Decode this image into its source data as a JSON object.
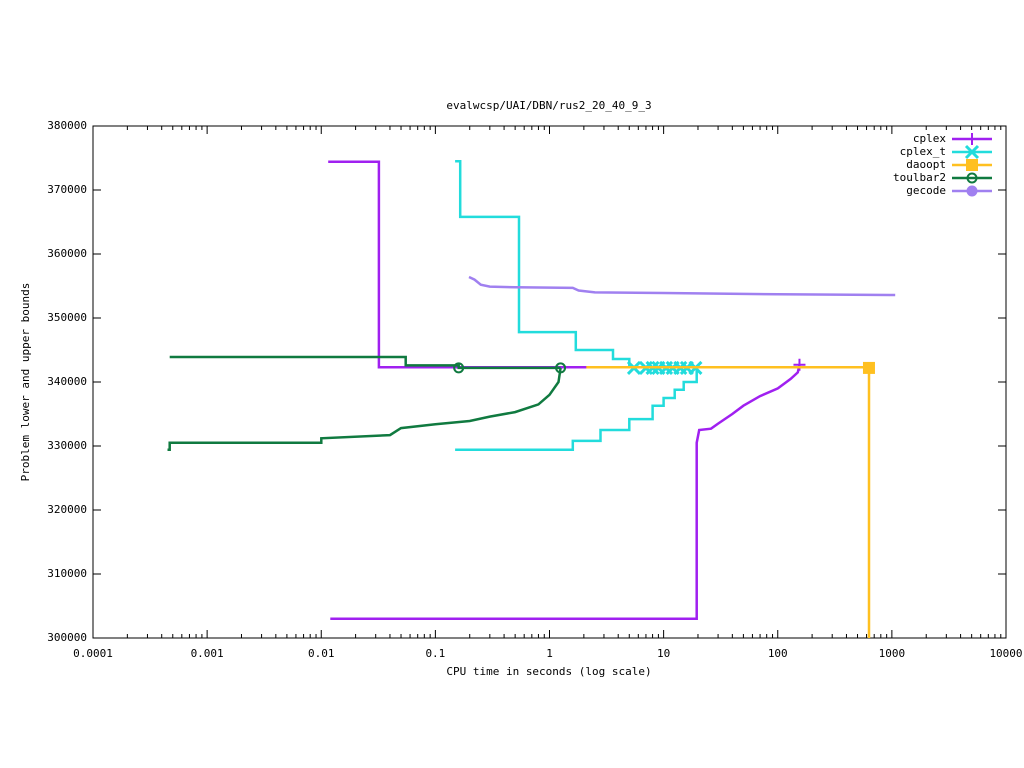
{
  "chart_data": {
    "type": "line",
    "title": "evalwcsp/UAI/DBN/rus2_20_40_9_3",
    "x_label": "CPU time in seconds (log scale)",
    "y_label": "Problem lower and upper bounds",
    "x_log": true,
    "xlim": [
      0.0001,
      10000
    ],
    "xticks": [
      0.0001,
      0.001,
      0.01,
      0.1,
      1,
      10,
      100,
      1000,
      10000
    ],
    "ylim": [
      300000,
      380000
    ],
    "yticks": [
      300000,
      310000,
      320000,
      330000,
      340000,
      350000,
      360000,
      370000,
      380000
    ],
    "legend": "top-right",
    "series": [
      {
        "name": "cplex",
        "color": "#a020f0",
        "marker": "plus",
        "x": [
          0.0115,
          0.032,
          0.032,
          157,
          null,
          0.012,
          19.5,
          19.5,
          20.5,
          26,
          30,
          40,
          50,
          70,
          100,
          130,
          150,
          155
        ],
        "values": [
          374400,
          374400,
          342300,
          342300,
          null,
          303000,
          303000,
          330500,
          332500,
          332700,
          333500,
          335000,
          336300,
          337800,
          339000,
          340500,
          341500,
          342700
        ],
        "marker_x": [
          155
        ],
        "marker_values": [
          342700
        ]
      },
      {
        "name": "cplex_t",
        "color": "#22dcdc",
        "marker": "cross",
        "x": [
          0.149,
          0.165,
          0.165,
          0.54,
          0.54,
          1.7,
          1.7,
          3.6,
          3.6,
          5,
          5,
          19.5,
          null,
          0.149,
          1.6,
          1.6,
          2.8,
          2.8,
          5,
          5,
          8,
          8,
          10,
          10,
          12.5,
          12.5,
          15,
          15,
          19.5,
          19.5
        ],
        "values": [
          374500,
          374500,
          365800,
          365800,
          347800,
          347800,
          345000,
          345000,
          343600,
          343600,
          342300,
          342300,
          null,
          329400,
          329400,
          330800,
          330800,
          332500,
          332500,
          334200,
          334200,
          336300,
          336300,
          337500,
          337500,
          338800,
          338800,
          340000,
          340000,
          342000
        ],
        "marker_x": [
          5.5,
          7,
          8,
          9,
          10.5,
          12,
          14,
          16,
          19
        ],
        "marker_values": [
          342200,
          342200,
          342200,
          342200,
          342200,
          342200,
          342200,
          342200,
          342200
        ]
      },
      {
        "name": "daoopt",
        "color": "#ffc020",
        "marker": "square",
        "x": [
          2.1,
          630,
          630
        ],
        "values": [
          342300,
          342300,
          300000
        ],
        "marker_x": [
          630
        ],
        "marker_values": [
          342200
        ]
      },
      {
        "name": "toulbar2",
        "color": "#107a40",
        "marker": "circle",
        "x": [
          0.00047,
          0.055,
          0.055,
          0.16,
          0.16,
          1.25,
          null,
          0.00045,
          0.00047,
          0.00047,
          0.01,
          0.01,
          0.04,
          0.05,
          0.1,
          0.2,
          0.3,
          0.5,
          0.8,
          1.0,
          1.2,
          1.25
        ],
        "values": [
          343900,
          343900,
          342600,
          342600,
          342200,
          342200,
          null,
          329400,
          329400,
          330500,
          330500,
          331200,
          331700,
          332800,
          333400,
          333900,
          334600,
          335300,
          336500,
          338000,
          340000,
          342200
        ],
        "marker_x": [
          0.16,
          1.25
        ],
        "marker_values": [
          342200,
          342200
        ]
      },
      {
        "name": "gecode",
        "color": "#a080f0",
        "marker": "dot",
        "x": [
          0.197,
          0.22,
          0.25,
          0.3,
          0.5,
          1.6,
          1.8,
          2.5,
          10,
          100,
          1070
        ],
        "values": [
          356400,
          356000,
          355200,
          354900,
          354800,
          354700,
          354300,
          354000,
          353900,
          353700,
          353600
        ]
      }
    ]
  }
}
